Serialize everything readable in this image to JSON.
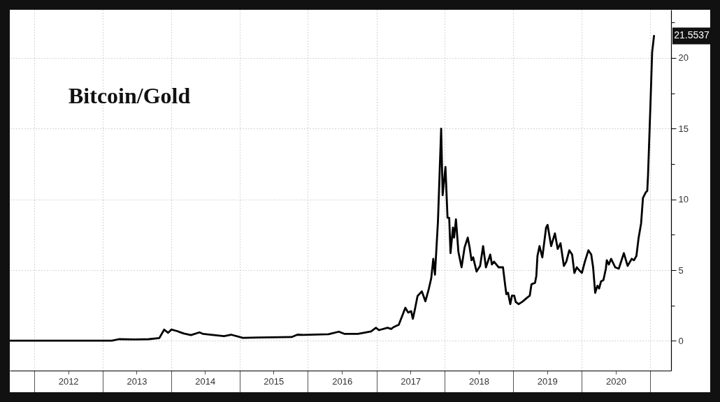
{
  "chart_data": {
    "type": "line",
    "title": "Bitcoin/Gold",
    "x": [
      "2011-08-24",
      "2013-02-19",
      "2013-03-28",
      "2013-06-21",
      "2013-09-04",
      "2013-10-30",
      "2013-11-25",
      "2013-12-16",
      "2014-01-02",
      "2014-01-31",
      "2014-03-10",
      "2014-04-17",
      "2014-06-01",
      "2014-06-19",
      "2014-10-10",
      "2014-11-17",
      "2015-01-19",
      "2015-04-03",
      "2015-10-06",
      "2015-11-06",
      "2015-12-06",
      "2016-04-20",
      "2016-06-14",
      "2016-07-13",
      "2016-09-24",
      "2016-12-03",
      "2016-12-29",
      "2017-01-14",
      "2017-03-01",
      "2017-03-20",
      "2017-04-02",
      "2017-04-30",
      "2017-06-04",
      "2017-06-19",
      "2017-07-05",
      "2017-07-14",
      "2017-07-24",
      "2017-08-08",
      "2017-08-31",
      "2017-09-19",
      "2017-10-07",
      "2017-10-20",
      "2017-10-31",
      "2017-11-09",
      "2017-11-25",
      "2017-12-12",
      "2017-12-20",
      "2018-01-04",
      "2018-01-15",
      "2018-01-24",
      "2018-01-31",
      "2018-02-13",
      "2018-02-19",
      "2018-03-01",
      "2018-03-14",
      "2018-03-31",
      "2018-04-16",
      "2018-05-03",
      "2018-05-13",
      "2018-05-23",
      "2018-06-01",
      "2018-06-19",
      "2018-07-08",
      "2018-07-24",
      "2018-08-08",
      "2018-08-31",
      "2018-09-09",
      "2018-09-20",
      "2018-10-15",
      "2018-11-07",
      "2018-11-19",
      "2018-11-25",
      "2018-12-04",
      "2018-12-16",
      "2018-12-25",
      "2019-01-06",
      "2019-01-14",
      "2019-01-29",
      "2019-02-17",
      "2019-03-20",
      "2019-03-30",
      "2019-04-08",
      "2019-04-27",
      "2019-05-04",
      "2019-05-10",
      "2019-05-21",
      "2019-06-05",
      "2019-06-25",
      "2019-07-03",
      "2019-07-22",
      "2019-08-11",
      "2019-08-26",
      "2019-09-10",
      "2019-09-28",
      "2019-10-11",
      "2019-10-27",
      "2019-11-11",
      "2019-11-23",
      "2019-12-06",
      "2019-12-18",
      "2020-01-02",
      "2020-01-18",
      "2020-02-06",
      "2020-02-21",
      "2020-03-02",
      "2020-03-13",
      "2020-03-25",
      "2020-04-03",
      "2020-04-13",
      "2020-04-26",
      "2020-05-09",
      "2020-05-14",
      "2020-05-25",
      "2020-06-06",
      "2020-06-28",
      "2020-07-17",
      "2020-08-13",
      "2020-09-02",
      "2020-09-24",
      "2020-10-06",
      "2020-10-19",
      "2020-10-31",
      "2020-11-13",
      "2020-11-23",
      "2020-12-08",
      "2020-12-16",
      "2020-12-20",
      "2021-01-02",
      "2021-01-11",
      "2021-01-21"
    ],
    "series": [
      {
        "color": "#000000",
        "values": [
          0.01,
          0.01,
          0.12,
          0.1,
          0.12,
          0.2,
          0.8,
          0.57,
          0.8,
          0.7,
          0.52,
          0.41,
          0.6,
          0.5,
          0.34,
          0.44,
          0.21,
          0.24,
          0.27,
          0.44,
          0.42,
          0.47,
          0.65,
          0.5,
          0.5,
          0.67,
          0.93,
          0.76,
          0.93,
          0.84,
          0.97,
          1.14,
          2.34,
          2.0,
          2.1,
          1.56,
          2.17,
          3.17,
          3.5,
          2.8,
          3.67,
          4.42,
          5.8,
          4.68,
          8.45,
          15.0,
          10.3,
          12.3,
          8.7,
          8.7,
          6.2,
          8.0,
          7.3,
          8.6,
          6.3,
          5.2,
          6.6,
          7.3,
          6.6,
          5.7,
          5.9,
          4.9,
          5.3,
          6.7,
          5.2,
          6.1,
          5.4,
          5.6,
          5.2,
          5.2,
          3.9,
          3.3,
          3.4,
          2.6,
          3.2,
          3.2,
          2.75,
          2.6,
          2.75,
          3.1,
          3.2,
          4.0,
          4.1,
          4.6,
          6.0,
          6.7,
          5.9,
          8.0,
          8.2,
          6.7,
          7.6,
          6.5,
          6.9,
          5.3,
          5.6,
          6.4,
          6.1,
          4.8,
          5.2,
          5.0,
          4.8,
          5.6,
          6.4,
          6.1,
          5.2,
          3.4,
          3.9,
          3.7,
          4.2,
          4.3,
          5.1,
          5.7,
          5.4,
          5.8,
          5.2,
          5.1,
          6.2,
          5.3,
          5.8,
          5.7,
          6.0,
          7.3,
          8.3,
          10.1,
          10.5,
          10.6,
          11.7,
          16.7,
          20.4,
          21.5537
        ]
      }
    ],
    "xlim": [
      "2011-08-24",
      "2021-04-22"
    ],
    "ylim": [
      -2.1,
      23.4
    ],
    "xticks": [
      {
        "value": "2012-01-01",
        "label": null
      },
      {
        "value": "2012-07-01",
        "label": "2012"
      },
      {
        "value": "2013-01-01",
        "label": null
      },
      {
        "value": "2013-07-01",
        "label": "2013"
      },
      {
        "value": "2014-01-01",
        "label": null
      },
      {
        "value": "2014-07-01",
        "label": "2014"
      },
      {
        "value": "2015-01-01",
        "label": null
      },
      {
        "value": "2015-07-01",
        "label": "2015"
      },
      {
        "value": "2016-01-01",
        "label": null
      },
      {
        "value": "2016-07-01",
        "label": "2016"
      },
      {
        "value": "2017-01-01",
        "label": null
      },
      {
        "value": "2017-07-01",
        "label": "2017"
      },
      {
        "value": "2018-01-01",
        "label": null
      },
      {
        "value": "2018-07-01",
        "label": "2018"
      },
      {
        "value": "2019-01-01",
        "label": null
      },
      {
        "value": "2019-07-01",
        "label": "2019"
      },
      {
        "value": "2020-01-01",
        "label": null
      },
      {
        "value": "2020-07-01",
        "label": "2020"
      },
      {
        "value": "2021-01-01",
        "label": null
      }
    ],
    "yticks": [
      0,
      {
        "value": 2.5,
        "label": null
      },
      5,
      {
        "value": 7.5,
        "label": null
      },
      10,
      {
        "value": 12.5,
        "label": null
      },
      15,
      {
        "value": 17.5,
        "label": null
      },
      20,
      {
        "value": 22.5,
        "label": null
      }
    ],
    "grid": true,
    "annotations": [
      "21.5537"
    ]
  }
}
